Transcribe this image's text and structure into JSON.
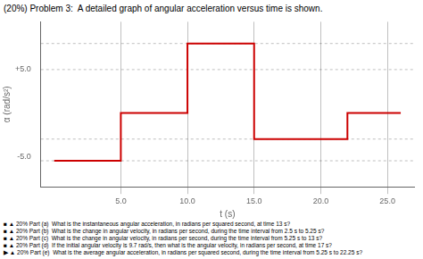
{
  "chart_data": {
    "type": "line",
    "title": "(20%) Problem 3:  A detailed graph of angular acceleration versus time is shown.",
    "x_label": "t (s)",
    "y_label": "α (rad/s²)",
    "xlim": [
      -1,
      27
    ],
    "ylim": [
      -8.5,
      10.5
    ],
    "xticks": [
      {
        "value": 5.0,
        "label": "5.0"
      },
      {
        "value": 10.0,
        "label": "10.0"
      },
      {
        "value": 15.0,
        "label": "15.0"
      },
      {
        "value": 20.0,
        "label": "20.0"
      },
      {
        "value": 25.0,
        "label": "25.0"
      }
    ],
    "yticks": [
      {
        "value": -5.0,
        "label": "-5.0"
      },
      {
        "value": 5.0,
        "label": "+5.0"
      }
    ],
    "grid": true,
    "h_lines": [
      8.0,
      5.0,
      -3.0,
      -5.5
    ],
    "color": "#cc0000",
    "segments": [
      {
        "start": 0,
        "end": 5,
        "value": -5.5
      },
      {
        "start": 5,
        "end": 10,
        "value": 0.0
      },
      {
        "start": 10,
        "end": 15,
        "value": 8.0
      },
      {
        "start": 15,
        "end": 22,
        "value": -3.0
      },
      {
        "start": 22,
        "end": 26,
        "value": 0.0
      }
    ],
    "annotations": [
      "■ ▲ 20% Part (a)  What is the instantaneous angular acceleration, in radians per squared second, at time 13 s?",
      "■ ▲ 20% Part (b)  What is the change in angular velocity, in radians per second, during the time interval from 2.5 s to 5.25 s?",
      "■ ▲ 20% Part (c)  What is the change in angular velocity, in radians per second, during the time interval from 5.25 s to 13 s?",
      "■ ▲ 20% Part (d)  If the initial angular velocity is 9.7 rad/s, then what is the angular velocity, in radians per second, at time 17 s?",
      "▶ ▲ 20% Part (e)  What is the average angular acceleration, in radians per squared second, during the time interval from 5.25 s to 22.25 s?"
    ]
  }
}
